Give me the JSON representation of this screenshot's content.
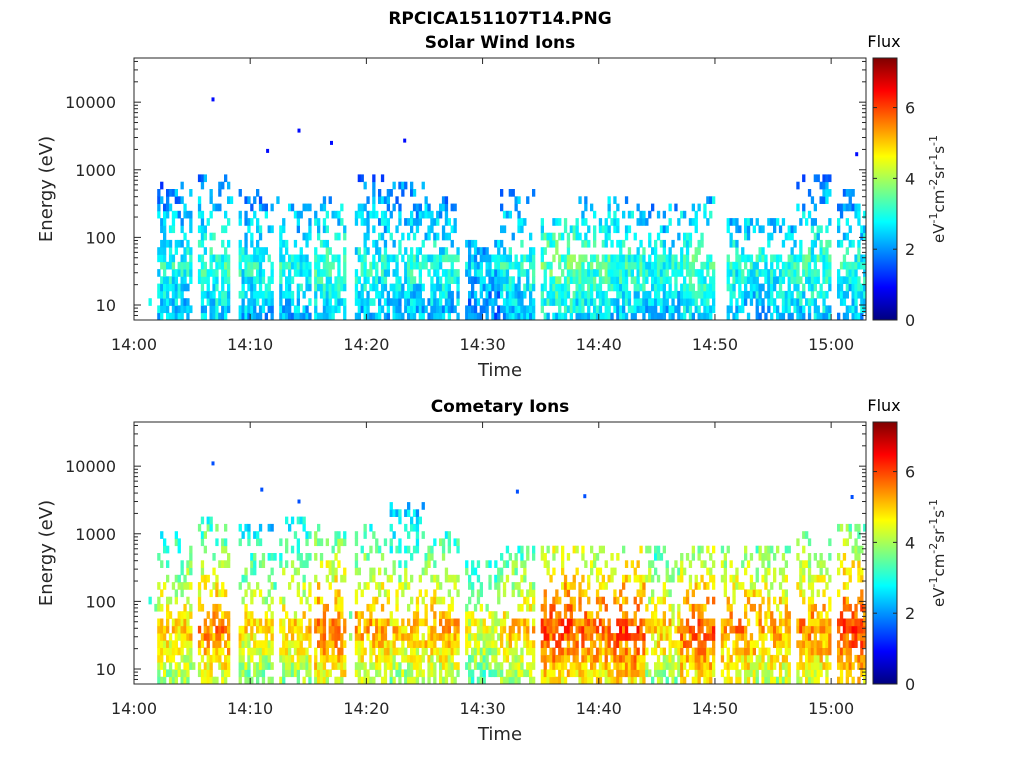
{
  "figure": {
    "title": "RPCICA151107T14.PNG"
  },
  "colormap": {
    "name": "jet",
    "stops": [
      "#00007f",
      "#0000ff",
      "#007fff",
      "#00ffff",
      "#7fff7f",
      "#ffff00",
      "#ff7f00",
      "#ff0000",
      "#7f0000"
    ]
  },
  "chart_data": [
    {
      "type": "heatmap",
      "title": "Solar Wind Ions",
      "xlabel": "Time",
      "ylabel": "Energy (eV)",
      "x_ticks": [
        "14:00",
        "14:10",
        "14:20",
        "14:30",
        "14:40",
        "14:50",
        "15:00"
      ],
      "x_tick_minutes": [
        0,
        10,
        20,
        30,
        40,
        50,
        60
      ],
      "xlim_minutes": [
        0,
        63
      ],
      "y_scale": "log",
      "y_ticks": [
        "10",
        "100",
        "1000",
        "10000"
      ],
      "y_tick_values": [
        10,
        100,
        1000,
        10000
      ],
      "ylim": [
        6,
        45000
      ],
      "grid": false,
      "colorbar": {
        "title": "Flux",
        "label": "eV-1cm-2sr-1s-1",
        "label_parts": [
          {
            "text": "eV",
            "sup": false
          },
          {
            "text": "-1",
            "sup": true
          },
          {
            "text": "cm",
            "sup": false
          },
          {
            "text": "-2",
            "sup": true
          },
          {
            "text": "sr",
            "sup": false
          },
          {
            "text": "-1",
            "sup": true
          },
          {
            "text": "s",
            "sup": false
          },
          {
            "text": "-1",
            "sup": true
          }
        ],
        "range": [
          0,
          7.4
        ],
        "ticks": [
          "0",
          "2",
          "4",
          "6"
        ],
        "tick_values": [
          0,
          2,
          4,
          6
        ]
      },
      "bursts": [
        {
          "t": 3.5,
          "level": 3.0,
          "emax": 600
        },
        {
          "t": 6.8,
          "level": 3.2,
          "emax": 900
        },
        {
          "t": 10.5,
          "level": 3.0,
          "emax": 500
        },
        {
          "t": 13.8,
          "level": 3.0,
          "emax": 300
        },
        {
          "t": 16.8,
          "level": 3.2,
          "emax": 400
        },
        {
          "t": 20.5,
          "level": 3.0,
          "emax": 900
        },
        {
          "t": 23.5,
          "level": 3.0,
          "emax": 600
        },
        {
          "t": 26.5,
          "level": 3.0,
          "emax": 400
        },
        {
          "t": 30.0,
          "level": 2.5,
          "emax": 100
        },
        {
          "t": 33.0,
          "level": 3.0,
          "emax": 500
        },
        {
          "t": 36.5,
          "level": 3.5,
          "emax": 200
        },
        {
          "t": 39.5,
          "level": 3.3,
          "emax": 400
        },
        {
          "t": 42.5,
          "level": 3.2,
          "emax": 400
        },
        {
          "t": 45.5,
          "level": 3.0,
          "emax": 300
        },
        {
          "t": 48.5,
          "level": 3.3,
          "emax": 400
        },
        {
          "t": 52.5,
          "level": 3.0,
          "emax": 200
        },
        {
          "t": 55.5,
          "level": 3.0,
          "emax": 200
        },
        {
          "t": 58.5,
          "level": 3.2,
          "emax": 800
        },
        {
          "t": 62.0,
          "level": 3.0,
          "emax": 500
        }
      ],
      "outliers": [
        {
          "t": 6.8,
          "e": 11000
        },
        {
          "t": 14.2,
          "e": 3800
        },
        {
          "t": 11.5,
          "e": 1900
        },
        {
          "t": 23.3,
          "e": 2700
        },
        {
          "t": 17.0,
          "e": 2500
        },
        {
          "t": 62.2,
          "e": 1700
        }
      ]
    },
    {
      "type": "heatmap",
      "title": "Cometary Ions",
      "xlabel": "Time",
      "ylabel": "Energy (eV)",
      "x_ticks": [
        "14:00",
        "14:10",
        "14:20",
        "14:30",
        "14:40",
        "14:50",
        "15:00"
      ],
      "x_tick_minutes": [
        0,
        10,
        20,
        30,
        40,
        50,
        60
      ],
      "xlim_minutes": [
        0,
        63
      ],
      "y_scale": "log",
      "y_ticks": [
        "10",
        "100",
        "1000",
        "10000"
      ],
      "y_tick_values": [
        10,
        100,
        1000,
        10000
      ],
      "ylim": [
        6,
        45000
      ],
      "grid": false,
      "colorbar": {
        "title": "Flux",
        "label": "eV-1cm-2sr-1s-1",
        "label_parts": [
          {
            "text": "eV",
            "sup": false
          },
          {
            "text": "-1",
            "sup": true
          },
          {
            "text": "cm",
            "sup": false
          },
          {
            "text": "-2",
            "sup": true
          },
          {
            "text": "sr",
            "sup": false
          },
          {
            "text": "-1",
            "sup": true
          },
          {
            "text": "s",
            "sup": false
          },
          {
            "text": "-1",
            "sup": true
          }
        ],
        "range": [
          0,
          7.4
        ],
        "ticks": [
          "0",
          "2",
          "4",
          "6"
        ],
        "tick_values": [
          0,
          2,
          4,
          6
        ]
      },
      "bursts": [
        {
          "t": 3.5,
          "level": 5.0,
          "emax": 1000
        },
        {
          "t": 6.8,
          "level": 5.5,
          "emax": 2000
        },
        {
          "t": 10.5,
          "level": 4.8,
          "emax": 1500
        },
        {
          "t": 13.8,
          "level": 5.0,
          "emax": 2000
        },
        {
          "t": 16.8,
          "level": 5.6,
          "emax": 1500
        },
        {
          "t": 20.5,
          "level": 5.3,
          "emax": 1500
        },
        {
          "t": 23.5,
          "level": 5.0,
          "emax": 3000
        },
        {
          "t": 26.5,
          "level": 5.2,
          "emax": 1000
        },
        {
          "t": 30.0,
          "level": 4.5,
          "emax": 400
        },
        {
          "t": 33.0,
          "level": 5.0,
          "emax": 600
        },
        {
          "t": 36.5,
          "level": 6.0,
          "emax": 700
        },
        {
          "t": 39.5,
          "level": 5.8,
          "emax": 700
        },
        {
          "t": 42.5,
          "level": 6.0,
          "emax": 700
        },
        {
          "t": 45.5,
          "level": 5.0,
          "emax": 600
        },
        {
          "t": 48.5,
          "level": 5.8,
          "emax": 700
        },
        {
          "t": 52.0,
          "level": 5.5,
          "emax": 600
        },
        {
          "t": 55.0,
          "level": 5.3,
          "emax": 600
        },
        {
          "t": 58.5,
          "level": 5.5,
          "emax": 1000
        },
        {
          "t": 62.0,
          "level": 6.0,
          "emax": 1500
        }
      ],
      "outliers": [
        {
          "t": 6.8,
          "e": 11000
        },
        {
          "t": 11.0,
          "e": 4500
        },
        {
          "t": 14.2,
          "e": 3000
        },
        {
          "t": 33.0,
          "e": 4200
        },
        {
          "t": 38.8,
          "e": 3600
        },
        {
          "t": 61.8,
          "e": 3500
        }
      ]
    }
  ]
}
